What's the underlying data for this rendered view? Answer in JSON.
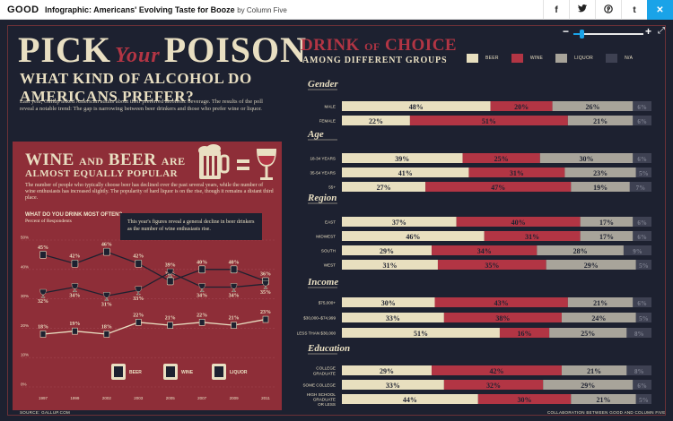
{
  "topbar": {
    "logo": "GOOD",
    "title": "Infographic: Americans' Evolving Taste for Booze",
    "by": "by Column Five",
    "share_icons": [
      "facebook-icon",
      "twitter-icon",
      "pinterest-icon",
      "tumblr-icon",
      "close-icon"
    ],
    "share_labels": [
      "f",
      "t",
      "p",
      "t",
      "✕"
    ]
  },
  "zoom": {
    "minus": "−",
    "plus": "+",
    "fullscreen": "⤢",
    "level": 0.12
  },
  "infographic": {
    "pick": "PICK",
    "your": "Your",
    "poison": "POISON",
    "what_kind": "WHAT KIND OF ALCOHOL DO AMERICANS PREFER?",
    "intro": "Last year, Gallup asked American adults about their preferred alcoholic beverage. The results of the poll reveal a notable trend: The gap is narrowing between beer drinkers and those who prefer wine or liquor.",
    "wb_wine": "WINE",
    "wb_and": "AND",
    "wb_beer": "BEER",
    "wb_are": "ARE",
    "wb_sub": "ALMOST EQUALLY POPULAR",
    "wb_text": "The number of people who typically choose beer has declined over the past several years, while the number of wine enthusiasts has increased slightly. The popularity of hard liquor is on the rise, though it remains a distant third place.",
    "q_title": "WHAT DO YOU DRINK MOST OFTEN?",
    "q_sub": "Percent of Respondents",
    "callout": "This year's figures reveal a general decline in beer drinkers as the number of wine enthusiasts rise.",
    "source": "SOURCE: GALLUP.COM",
    "collab": "COLLABORATION BETWEEN GOOD AND COLUMN FIVE"
  },
  "line_legend": [
    "BEER",
    "WINE",
    "LIQUOR"
  ],
  "right": {
    "title_drink": "DRINK",
    "title_of": "OF",
    "title_choice": "CHOICE",
    "subtitle": "AMONG DIFFERENT GROUPS",
    "legend": [
      "BEER",
      "WINE",
      "LIQUOR",
      "N/A"
    ]
  },
  "colors": {
    "beer": "#e8dfbf",
    "wine": "#b23544",
    "liquor": "#a8a49a",
    "na": "#3e4152",
    "dark": "#1d2130",
    "red": "#8e2e38",
    "cream": "#e9dfc2"
  },
  "chart_data": [
    {
      "type": "line",
      "title": "WHAT DO YOU DRINK MOST OFTEN?",
      "ylabel": "Percent of Respondents",
      "x": [
        "1997",
        "1999",
        "2002",
        "2003",
        "2005",
        "2007",
        "2009",
        "2011"
      ],
      "yticks": [
        "50%",
        "40%",
        "30%",
        "20%",
        "10%",
        "0%"
      ],
      "ylim": [
        0,
        50
      ],
      "series": [
        {
          "name": "BEER",
          "values": [
            45,
            42,
            46,
            42,
            36,
            40,
            40,
            36
          ]
        },
        {
          "name": "WINE",
          "values": [
            32,
            34,
            31,
            33,
            39,
            34,
            34,
            35
          ]
        },
        {
          "name": "LIQUOR",
          "values": [
            18,
            19,
            18,
            22,
            21,
            22,
            21,
            23
          ]
        }
      ]
    },
    {
      "type": "bar",
      "stacked": true,
      "title": "DRINK OF CHOICE",
      "subtitle": "AMONG DIFFERENT GROUPS",
      "series_names": [
        "BEER",
        "WINE",
        "LIQUOR",
        "N/A"
      ],
      "groups": [
        {
          "name": "Gender",
          "rows": [
            {
              "label": "MALE",
              "values": [
                48,
                20,
                26,
                6
              ]
            },
            {
              "label": "FEMALE",
              "values": [
                22,
                51,
                21,
                6
              ]
            }
          ]
        },
        {
          "name": "Age",
          "rows": [
            {
              "label": "18-34 YEARS",
              "values": [
                39,
                25,
                30,
                6
              ]
            },
            {
              "label": "35-54 YEARS",
              "values": [
                41,
                31,
                23,
                5
              ]
            },
            {
              "label": "55+",
              "values": [
                27,
                47,
                19,
                7
              ]
            }
          ]
        },
        {
          "name": "Region",
          "rows": [
            {
              "label": "EAST",
              "values": [
                37,
                40,
                17,
                6
              ]
            },
            {
              "label": "MIDWEST",
              "values": [
                46,
                31,
                17,
                6
              ]
            },
            {
              "label": "SOUTH",
              "values": [
                29,
                34,
                28,
                9
              ]
            },
            {
              "label": "WEST",
              "values": [
                31,
                35,
                29,
                5
              ]
            }
          ]
        },
        {
          "name": "Income",
          "rows": [
            {
              "label": "$75,000+",
              "values": [
                30,
                43,
                21,
                6
              ]
            },
            {
              "label": "$30,000–$74,999",
              "values": [
                33,
                38,
                24,
                5
              ]
            },
            {
              "label": "LESS THAN $30,000",
              "values": [
                51,
                16,
                25,
                8
              ]
            }
          ]
        },
        {
          "name": "Education",
          "rows": [
            {
              "label": "COLLEGE GRADUATE",
              "values": [
                29,
                42,
                21,
                8
              ]
            },
            {
              "label": "SOME COLLEGE",
              "values": [
                33,
                32,
                29,
                6
              ]
            },
            {
              "label": "HIGH SCHOOL GRADUATE OR LESS",
              "values": [
                44,
                30,
                21,
                5
              ]
            }
          ]
        }
      ]
    }
  ]
}
